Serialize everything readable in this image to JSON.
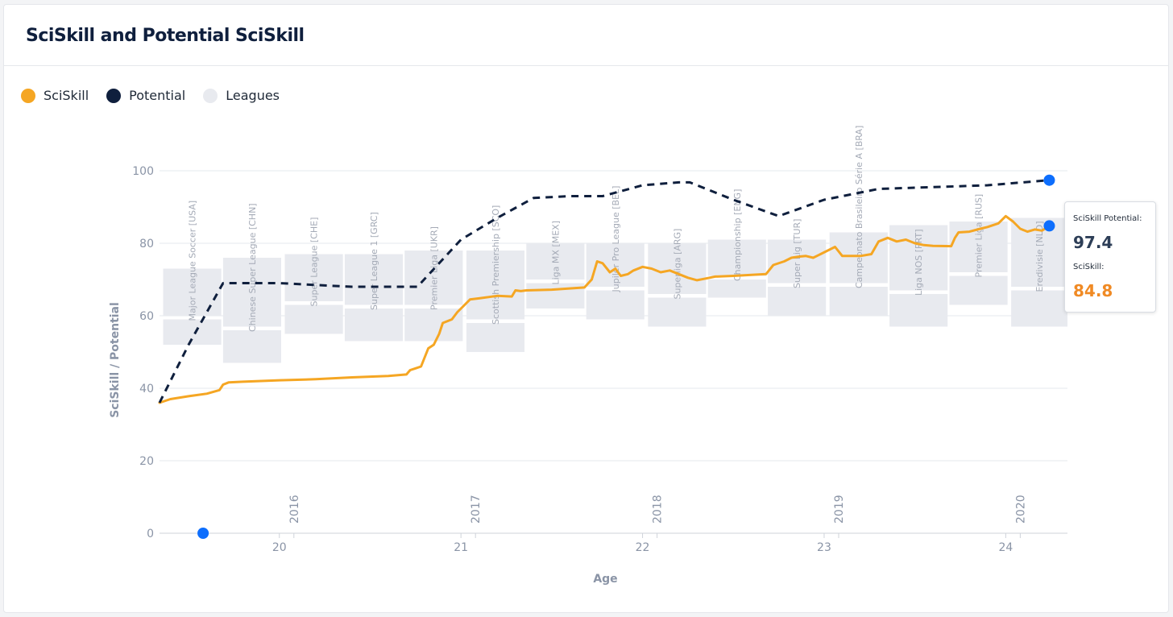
{
  "header": {
    "title": "SciSkill and Potential SciSkill"
  },
  "legend": [
    {
      "label": "SciSkill",
      "color": "#f5a623"
    },
    {
      "label": "Potential",
      "color": "#0f1f3d"
    },
    {
      "label": "Leagues",
      "color": "#e8eaef"
    }
  ],
  "tooltip": {
    "potential_label": "SciSkill Potential:",
    "potential_value": "97.4",
    "sciskill_label": "SciSkill:",
    "sciskill_value": "84.8"
  },
  "chart_data": {
    "type": "line",
    "xlabel": "Age",
    "ylabel": "SciSkill / Potential",
    "xlim": [
      19.34,
      24.34
    ],
    "ylim": [
      0,
      100
    ],
    "x_ticks": [
      20,
      21,
      22,
      23,
      24
    ],
    "y_ticks": [
      0,
      20,
      40,
      60,
      80,
      100
    ],
    "grid": "horizontal",
    "year_markers": [
      {
        "label": "2016",
        "age": 20.08
      },
      {
        "label": "2017",
        "age": 21.08
      },
      {
        "label": "2018",
        "age": 22.08
      },
      {
        "label": "2019",
        "age": 23.08
      },
      {
        "label": "2020",
        "age": 24.08
      }
    ],
    "leagues": [
      {
        "name": "Major League Soccer [USA]",
        "x0": 19.36,
        "x1": 19.68,
        "upper": [
          60,
          73
        ],
        "lower": [
          52,
          59
        ]
      },
      {
        "name": "Chinese Super League [CHN]",
        "x0": 19.69,
        "x1": 20.01,
        "upper": [
          57,
          76
        ],
        "lower": [
          47,
          56
        ]
      },
      {
        "name": "Super League [CHE]",
        "x0": 20.03,
        "x1": 20.35,
        "upper": [
          64,
          77
        ],
        "lower": [
          55,
          63
        ]
      },
      {
        "name": "Super League 1 [GRC]",
        "x0": 20.36,
        "x1": 20.68,
        "upper": [
          63,
          77
        ],
        "lower": [
          53,
          62
        ]
      },
      {
        "name": "Premier Liga [UKR]",
        "x0": 20.69,
        "x1": 21.01,
        "upper": [
          63,
          78
        ],
        "lower": [
          53,
          62
        ]
      },
      {
        "name": "Scottish Premiership [SCO]",
        "x0": 21.03,
        "x1": 21.35,
        "upper": [
          59,
          78
        ],
        "lower": [
          50,
          58
        ]
      },
      {
        "name": "Liga MX [MEX]",
        "x0": 21.36,
        "x1": 21.68,
        "upper": [
          70,
          80
        ],
        "lower": [
          62,
          69
        ]
      },
      {
        "name": "Jupiler Pro League [BEL]",
        "x0": 21.69,
        "x1": 22.01,
        "upper": [
          68,
          80
        ],
        "lower": [
          59,
          67
        ]
      },
      {
        "name": "Superliga [ARG]",
        "x0": 22.03,
        "x1": 22.35,
        "upper": [
          66,
          80
        ],
        "lower": [
          57,
          65
        ]
      },
      {
        "name": "Championship [ENG]",
        "x0": 22.36,
        "x1": 22.68,
        "upper": [
          71,
          81
        ],
        "lower": [
          65,
          70
        ]
      },
      {
        "name": "Super Lig [TUR]",
        "x0": 22.69,
        "x1": 23.01,
        "upper": [
          69,
          81
        ],
        "lower": [
          60,
          68
        ]
      },
      {
        "name": "Campeonato Brasileiro Série A [BRA]",
        "x0": 23.03,
        "x1": 23.35,
        "upper": [
          69,
          83
        ],
        "lower": [
          60,
          68
        ]
      },
      {
        "name": "Liga NOS [PRT]",
        "x0": 23.36,
        "x1": 23.68,
        "upper": [
          67,
          85
        ],
        "lower": [
          57,
          66
        ]
      },
      {
        "name": "Premier Liga [RUS]",
        "x0": 23.69,
        "x1": 24.01,
        "upper": [
          72,
          86
        ],
        "lower": [
          63,
          71
        ]
      },
      {
        "name": "Eredivisie [NLD]",
        "x0": 24.03,
        "x1": 24.34,
        "upper": [
          68,
          87
        ],
        "lower": [
          57,
          67
        ]
      }
    ],
    "series": [
      {
        "name": "SciSkill",
        "color": "#f5a623",
        "x": [
          19.34,
          19.4,
          19.5,
          19.6,
          19.67,
          19.69,
          19.72,
          19.8,
          20.0,
          20.2,
          20.4,
          20.6,
          20.7,
          20.72,
          20.75,
          20.78,
          20.82,
          20.85,
          20.88,
          20.9,
          20.95,
          20.98,
          21.0,
          21.05,
          21.1,
          21.2,
          21.28,
          21.3,
          21.33,
          21.36,
          21.5,
          21.68,
          21.72,
          21.75,
          21.78,
          21.82,
          21.85,
          21.88,
          21.92,
          21.95,
          22.0,
          22.05,
          22.1,
          22.15,
          22.2,
          22.25,
          22.3,
          22.35,
          22.4,
          22.5,
          22.68,
          22.72,
          22.78,
          22.82,
          22.86,
          22.9,
          22.94,
          22.98,
          23.02,
          23.06,
          23.1,
          23.2,
          23.26,
          23.3,
          23.35,
          23.4,
          23.45,
          23.5,
          23.55,
          23.6,
          23.7,
          23.72,
          23.74,
          23.8,
          23.86,
          23.9,
          23.96,
          24.0,
          24.04,
          24.08,
          24.12,
          24.16,
          24.2,
          24.24
        ],
        "values": [
          36,
          37,
          37.8,
          38.5,
          39.5,
          41,
          41.6,
          41.8,
          42.2,
          42.5,
          43,
          43.4,
          43.8,
          45,
          45.5,
          46,
          51,
          52,
          55,
          58,
          59,
          61,
          62,
          64.5,
          64.8,
          65.5,
          65.3,
          67,
          66.8,
          67,
          67.2,
          67.8,
          70,
          75,
          74.5,
          72,
          73,
          71,
          71.5,
          72.5,
          73.5,
          73,
          72,
          72.5,
          71.5,
          70.5,
          69.8,
          70.3,
          70.8,
          71,
          71.5,
          74,
          75,
          76,
          76.3,
          76.5,
          76,
          77,
          78,
          79,
          76.5,
          76.5,
          77,
          80.5,
          81.5,
          80.5,
          81,
          80,
          79.5,
          79.3,
          79.2,
          81.5,
          83,
          83.2,
          84,
          84.5,
          85.5,
          87.5,
          86,
          84,
          83.2,
          83.8,
          83.5,
          84.8
        ]
      },
      {
        "name": "Potential",
        "color": "#0f1f3d",
        "x": [
          19.34,
          19.5,
          19.69,
          19.8,
          20.0,
          20.2,
          20.4,
          20.6,
          20.76,
          21.0,
          21.2,
          21.4,
          21.6,
          21.78,
          22.0,
          22.2,
          22.26,
          22.5,
          22.75,
          23.0,
          23.3,
          23.6,
          23.9,
          24.24
        ],
        "values": [
          36,
          52,
          69,
          69,
          69,
          68.5,
          68,
          68,
          68,
          81,
          87,
          92.5,
          93,
          93,
          96,
          96.8,
          96.8,
          92,
          87.5,
          92,
          95,
          95.5,
          96,
          97.4
        ]
      }
    ],
    "markers": [
      {
        "name": "Potential current",
        "x": 24.24,
        "y": 97.4
      },
      {
        "name": "SciSkill current",
        "x": 24.24,
        "y": 84.8
      },
      {
        "name": "Start",
        "x": 19.58,
        "y": 0
      }
    ]
  }
}
